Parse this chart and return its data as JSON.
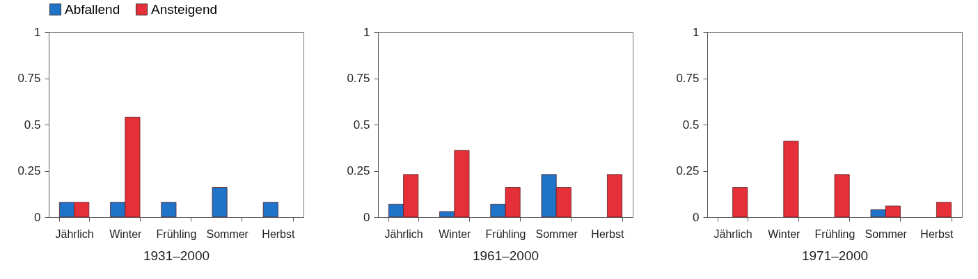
{
  "chart_data": [
    {
      "type": "bar",
      "xlabel": "1931–2000",
      "categories": [
        "Jährlich",
        "Winter",
        "Frühling",
        "Sommer",
        "Herbst"
      ],
      "ylim": [
        0,
        1
      ],
      "yticks": [
        0,
        0.25,
        0.5,
        0.75,
        1
      ],
      "grid": false,
      "legend": "top left",
      "series": [
        {
          "name": "Abfallend",
          "color": "#1f74c9",
          "values": [
            0.08,
            0.08,
            0.08,
            0.16,
            0.08
          ]
        },
        {
          "name": "Ansteigend",
          "color": "#e5303a",
          "values": [
            0.08,
            0.54,
            null,
            null,
            null
          ]
        }
      ]
    },
    {
      "type": "bar",
      "xlabel": "1961–2000",
      "categories": [
        "Jährlich",
        "Winter",
        "Frühling",
        "Sommer",
        "Herbst"
      ],
      "ylim": [
        0,
        1
      ],
      "yticks": [
        0,
        0.25,
        0.5,
        0.75,
        1
      ],
      "grid": false,
      "legend": false,
      "series": [
        {
          "name": "Abfallend",
          "color": "#1f74c9",
          "values": [
            0.07,
            0.03,
            0.07,
            0.23,
            null
          ]
        },
        {
          "name": "Ansteigend",
          "color": "#e5303a",
          "values": [
            0.23,
            0.36,
            0.16,
            0.16,
            0.23
          ]
        }
      ]
    },
    {
      "type": "bar",
      "xlabel": "1971–2000",
      "categories": [
        "Jährlich",
        "Winter",
        "Frühling",
        "Sommer",
        "Herbst"
      ],
      "ylim": [
        0,
        1
      ],
      "yticks": [
        0,
        0.25,
        0.5,
        0.75,
        1
      ],
      "grid": false,
      "legend": false,
      "series": [
        {
          "name": "Abfallend",
          "color": "#1f74c9",
          "values": [
            null,
            null,
            null,
            0.04,
            null
          ]
        },
        {
          "name": "Ansteigend",
          "color": "#e5303a",
          "values": [
            0.16,
            0.41,
            0.23,
            0.06,
            0.08
          ]
        }
      ]
    }
  ]
}
